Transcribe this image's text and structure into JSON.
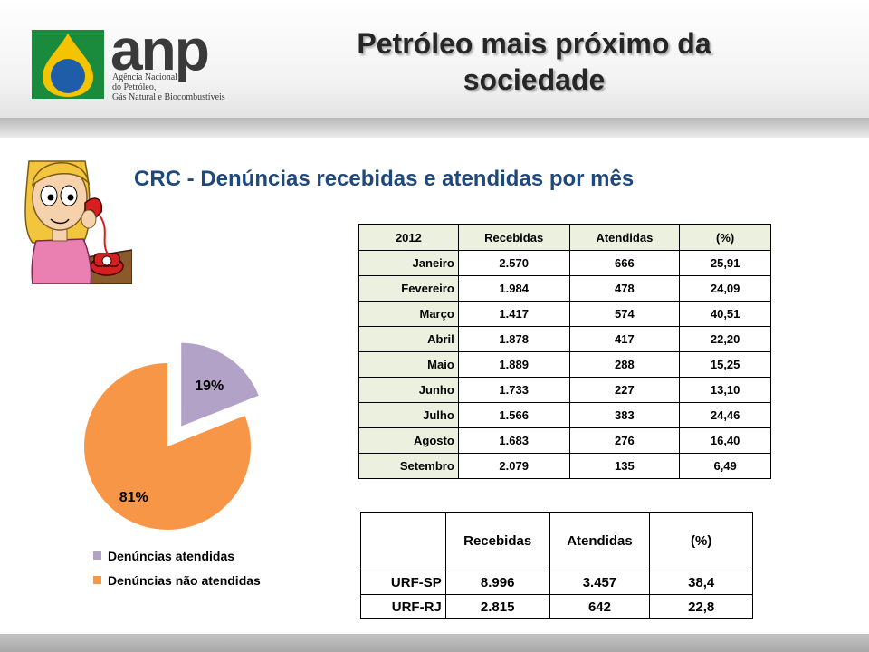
{
  "header": {
    "logo_word": "anp",
    "logo_lines": [
      "Agência Nacional",
      "do Petróleo,",
      "Gás Natural e Biocombustíveis"
    ],
    "title_line1": "Petróleo mais próximo da",
    "title_line2": "sociedade"
  },
  "subtitle": "CRC - Denúncias recebidas e atendidas por mês",
  "monthly_table": {
    "headers": [
      "2012",
      "Recebidas",
      "Atendidas",
      "(%)"
    ],
    "rows": [
      [
        "Janeiro",
        "2.570",
        "666",
        "25,91"
      ],
      [
        "Fevereiro",
        "1.984",
        "478",
        "24,09"
      ],
      [
        "Março",
        "1.417",
        "574",
        "40,51"
      ],
      [
        "Abril",
        "1.878",
        "417",
        "22,20"
      ],
      [
        "Maio",
        "1.889",
        "288",
        "15,25"
      ],
      [
        "Junho",
        "1.733",
        "227",
        "13,10"
      ],
      [
        "Julho",
        "1.566",
        "383",
        "24,46"
      ],
      [
        "Agosto",
        "1.683",
        "276",
        "16,40"
      ],
      [
        "Setembro",
        "2.079",
        "135",
        "6,49"
      ]
    ]
  },
  "urf_table": {
    "headers": [
      "",
      "Recebidas",
      "Atendidas",
      "(%)"
    ],
    "rows": [
      [
        "URF-SP",
        "8.996",
        "3.457",
        "38,4"
      ],
      [
        "URF-RJ",
        "2.815",
        "642",
        "22,8"
      ]
    ]
  },
  "chart_data": {
    "type": "pie",
    "slices": [
      {
        "label": "Denúncias atendidas",
        "value": 19,
        "display": "19%",
        "color": "#b3a2c7",
        "exploded": true
      },
      {
        "label": "Denúncias não atendidas",
        "value": 81,
        "display": "81%",
        "color": "#f79646",
        "exploded": false
      }
    ],
    "legend_position": "bottom"
  },
  "colors": {
    "subtitle": "#1f497d",
    "table_header_fill": "#ebf1de",
    "logo_green": "#1a8a3c",
    "logo_yellow": "#f5c400",
    "logo_blue": "#1f5da8"
  }
}
